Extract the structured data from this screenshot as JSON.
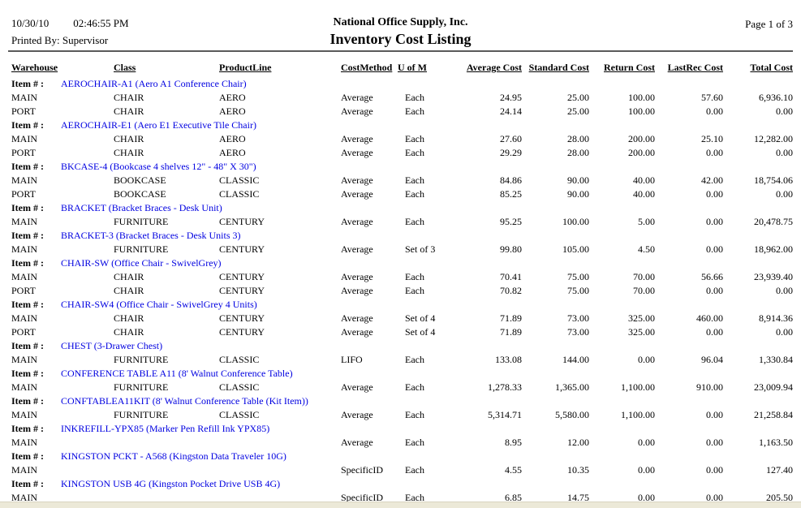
{
  "header": {
    "date": "10/30/10",
    "time": "02:46:55 PM",
    "printed_by": "Printed By: Supervisor",
    "company": "National Office Supply, Inc.",
    "title": "Inventory Cost Listing",
    "page": "Page 1 of 3"
  },
  "item_label": "Item # :",
  "columns": [
    "Warehouse",
    "Class",
    "ProductLine",
    "CostMethod",
    "U of M",
    "Average Cost",
    "Standard Cost",
    "Return Cost",
    "LastRec Cost",
    "Total Cost"
  ],
  "colors": {
    "item_link_blue": "#0000e0",
    "rule_gray": "#5a5a5a",
    "bottom_strip_beige": "#ece9d8"
  },
  "items": [
    {
      "name": "AEROCHAIR-A1 (Aero A1 Conference Chair)",
      "rows": [
        {
          "warehouse": "MAIN",
          "class": "CHAIR",
          "product_line": "AERO",
          "cost_method": "Average",
          "uofm": "Each",
          "average_cost": "24.95",
          "standard_cost": "25.00",
          "return_cost": "100.00",
          "lastrec_cost": "57.60",
          "total_cost": "6,936.10"
        },
        {
          "warehouse": "PORT",
          "class": "CHAIR",
          "product_line": "AERO",
          "cost_method": "Average",
          "uofm": "Each",
          "average_cost": "24.14",
          "standard_cost": "25.00",
          "return_cost": "100.00",
          "lastrec_cost": "0.00",
          "total_cost": "0.00"
        }
      ]
    },
    {
      "name": "AEROCHAIR-E1 (Aero E1 Executive Tile Chair)",
      "rows": [
        {
          "warehouse": "MAIN",
          "class": "CHAIR",
          "product_line": "AERO",
          "cost_method": "Average",
          "uofm": "Each",
          "average_cost": "27.60",
          "standard_cost": "28.00",
          "return_cost": "200.00",
          "lastrec_cost": "25.10",
          "total_cost": "12,282.00"
        },
        {
          "warehouse": "PORT",
          "class": "CHAIR",
          "product_line": "AERO",
          "cost_method": "Average",
          "uofm": "Each",
          "average_cost": "29.29",
          "standard_cost": "28.00",
          "return_cost": "200.00",
          "lastrec_cost": "0.00",
          "total_cost": "0.00"
        }
      ]
    },
    {
      "name": "BKCASE-4 (Bookcase 4 shelves 12\" - 48\" X 30\")",
      "rows": [
        {
          "warehouse": "MAIN",
          "class": "BOOKCASE",
          "product_line": "CLASSIC",
          "cost_method": "Average",
          "uofm": "Each",
          "average_cost": "84.86",
          "standard_cost": "90.00",
          "return_cost": "40.00",
          "lastrec_cost": "42.00",
          "total_cost": "18,754.06"
        },
        {
          "warehouse": "PORT",
          "class": "BOOKCASE",
          "product_line": "CLASSIC",
          "cost_method": "Average",
          "uofm": "Each",
          "average_cost": "85.25",
          "standard_cost": "90.00",
          "return_cost": "40.00",
          "lastrec_cost": "0.00",
          "total_cost": "0.00"
        }
      ]
    },
    {
      "name": "BRACKET (Bracket Braces - Desk Unit)",
      "rows": [
        {
          "warehouse": "MAIN",
          "class": "FURNITURE",
          "product_line": "CENTURY",
          "cost_method": "Average",
          "uofm": "Each",
          "average_cost": "95.25",
          "standard_cost": "100.00",
          "return_cost": "5.00",
          "lastrec_cost": "0.00",
          "total_cost": "20,478.75"
        }
      ]
    },
    {
      "name": "BRACKET-3 (Bracket Braces - Desk Units 3)",
      "rows": [
        {
          "warehouse": "MAIN",
          "class": "FURNITURE",
          "product_line": "CENTURY",
          "cost_method": "Average",
          "uofm": "Set of 3",
          "average_cost": "99.80",
          "standard_cost": "105.00",
          "return_cost": "4.50",
          "lastrec_cost": "0.00",
          "total_cost": "18,962.00"
        }
      ]
    },
    {
      "name": "CHAIR-SW (Office Chair - SwivelGrey)",
      "rows": [
        {
          "warehouse": "MAIN",
          "class": "CHAIR",
          "product_line": "CENTURY",
          "cost_method": "Average",
          "uofm": "Each",
          "average_cost": "70.41",
          "standard_cost": "75.00",
          "return_cost": "70.00",
          "lastrec_cost": "56.66",
          "total_cost": "23,939.40"
        },
        {
          "warehouse": "PORT",
          "class": "CHAIR",
          "product_line": "CENTURY",
          "cost_method": "Average",
          "uofm": "Each",
          "average_cost": "70.82",
          "standard_cost": "75.00",
          "return_cost": "70.00",
          "lastrec_cost": "0.00",
          "total_cost": "0.00"
        }
      ]
    },
    {
      "name": "CHAIR-SW4 (Office Chair - SwivelGrey 4 Units)",
      "rows": [
        {
          "warehouse": "MAIN",
          "class": "CHAIR",
          "product_line": "CENTURY",
          "cost_method": "Average",
          "uofm": "Set of 4",
          "average_cost": "71.89",
          "standard_cost": "73.00",
          "return_cost": "325.00",
          "lastrec_cost": "460.00",
          "total_cost": "8,914.36"
        },
        {
          "warehouse": "PORT",
          "class": "CHAIR",
          "product_line": "CENTURY",
          "cost_method": "Average",
          "uofm": "Set of 4",
          "average_cost": "71.89",
          "standard_cost": "73.00",
          "return_cost": "325.00",
          "lastrec_cost": "0.00",
          "total_cost": "0.00"
        }
      ]
    },
    {
      "name": "CHEST (3-Drawer Chest)",
      "rows": [
        {
          "warehouse": "MAIN",
          "class": "FURNITURE",
          "product_line": "CLASSIC",
          "cost_method": "LIFO",
          "uofm": "Each",
          "average_cost": "133.08",
          "standard_cost": "144.00",
          "return_cost": "0.00",
          "lastrec_cost": "96.04",
          "total_cost": "1,330.84"
        }
      ]
    },
    {
      "name": "CONFERENCE TABLE A11 (8' Walnut Conference Table)",
      "rows": [
        {
          "warehouse": "MAIN",
          "class": "FURNITURE",
          "product_line": "CLASSIC",
          "cost_method": "Average",
          "uofm": "Each",
          "average_cost": "1,278.33",
          "standard_cost": "1,365.00",
          "return_cost": "1,100.00",
          "lastrec_cost": "910.00",
          "total_cost": "23,009.94"
        }
      ]
    },
    {
      "name": "CONFTABLEA11KIT (8' Walnut Conference Table (Kit Item))",
      "rows": [
        {
          "warehouse": "MAIN",
          "class": "FURNITURE",
          "product_line": "CLASSIC",
          "cost_method": "Average",
          "uofm": "Each",
          "average_cost": "5,314.71",
          "standard_cost": "5,580.00",
          "return_cost": "1,100.00",
          "lastrec_cost": "0.00",
          "total_cost": "21,258.84"
        }
      ]
    },
    {
      "name": "INKREFILL-YPX85 (Marker Pen Refill Ink YPX85)",
      "rows": [
        {
          "warehouse": "MAIN",
          "class": "",
          "product_line": "",
          "cost_method": "Average",
          "uofm": "Each",
          "average_cost": "8.95",
          "standard_cost": "12.00",
          "return_cost": "0.00",
          "lastrec_cost": "0.00",
          "total_cost": "1,163.50"
        }
      ]
    },
    {
      "name": "KINGSTON PCKT - A568 (Kingston Data Traveler 10G)",
      "rows": [
        {
          "warehouse": "MAIN",
          "class": "",
          "product_line": "",
          "cost_method": "SpecificID",
          "uofm": "Each",
          "average_cost": "4.55",
          "standard_cost": "10.35",
          "return_cost": "0.00",
          "lastrec_cost": "0.00",
          "total_cost": "127.40"
        }
      ]
    },
    {
      "name": "KINGSTON USB 4G (Kingston Pocket Drive USB 4G)",
      "rows": [
        {
          "warehouse": "MAIN",
          "class": "",
          "product_line": "",
          "cost_method": "SpecificID",
          "uofm": "Each",
          "average_cost": "6.85",
          "standard_cost": "14.75",
          "return_cost": "0.00",
          "lastrec_cost": "0.00",
          "total_cost": "205.50"
        }
      ]
    }
  ]
}
